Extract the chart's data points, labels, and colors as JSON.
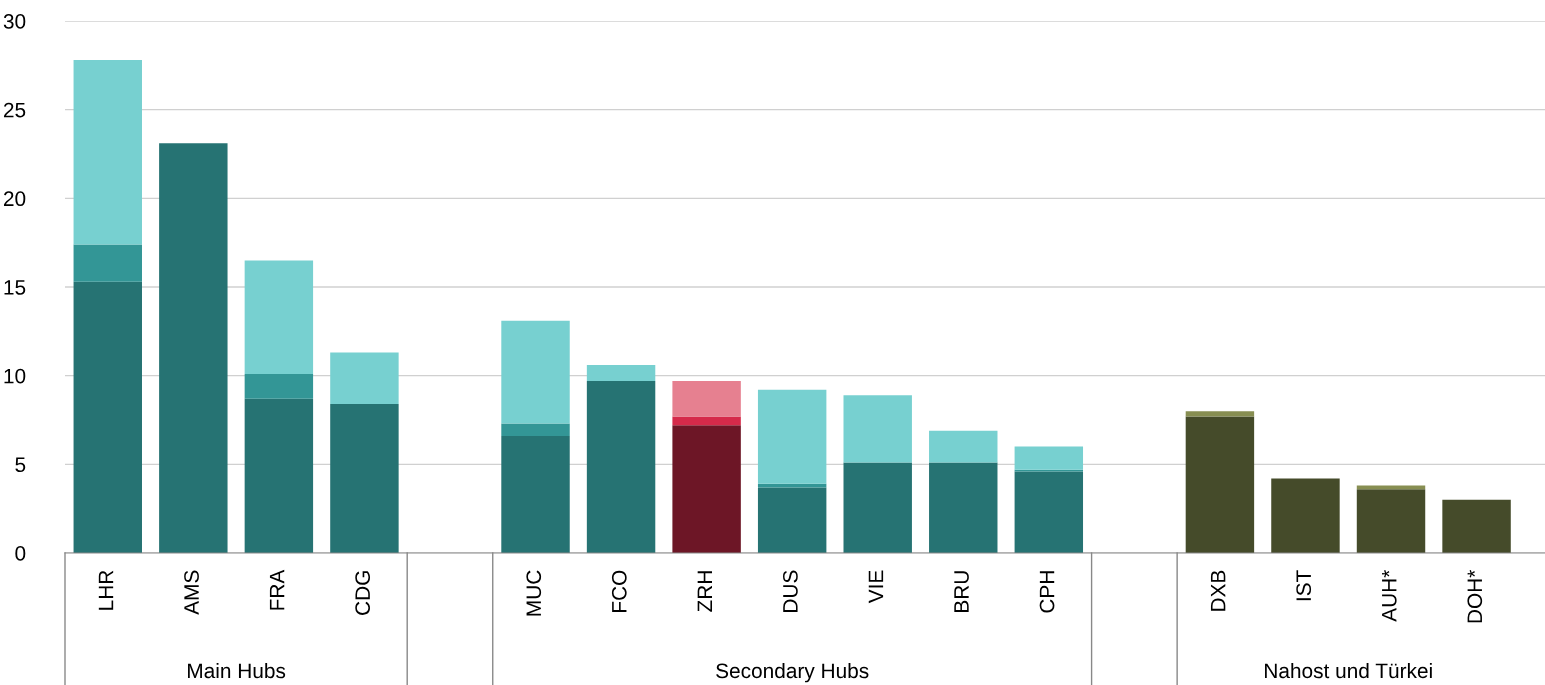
{
  "chart_data": {
    "type": "bar",
    "stacked": true,
    "categories": [
      "LHR",
      "AMS",
      "FRA",
      "CDG",
      null,
      "MUC",
      "FCO",
      "ZRH",
      "DUS",
      "VIE",
      "BRU",
      "CPH",
      null,
      "DXB",
      "IST",
      "AUH*",
      "DOH*"
    ],
    "series": [
      {
        "colors": [
          "#267373",
          "#267373",
          "#267373",
          "#267373",
          "#267373",
          "#267373",
          "#267373",
          "#6d1626",
          "#267373",
          "#267373",
          "#267373",
          "#267373",
          "#267373",
          "#454b2a",
          "#454b2a",
          "#454b2a",
          "#454b2a"
        ],
        "values": [
          15.3,
          23.1,
          8.7,
          8.4,
          null,
          6.6,
          9.7,
          7.2,
          3.7,
          5.1,
          5.1,
          4.6,
          null,
          7.7,
          4.2,
          3.6,
          3.0
        ]
      },
      {
        "colors": [
          "#339696",
          "#339696",
          "#339696",
          "#339696",
          "#339696",
          "#339696",
          "#339696",
          "#d52a4a",
          "#339696",
          "#339696",
          "#339696",
          "#339696",
          "#339696",
          "#878e52",
          "#878e52",
          "#878e52",
          "#878e52"
        ],
        "values": [
          2.1,
          null,
          1.4,
          null,
          null,
          0.7,
          null,
          0.5,
          0.2,
          null,
          null,
          0.1,
          null,
          0.3,
          null,
          0.2,
          null
        ]
      },
      {
        "colors": [
          "#77d0d0",
          "#77d0d0",
          "#77d0d0",
          "#77d0d0",
          "#77d0d0",
          "#77d0d0",
          "#77d0d0",
          "#e68090",
          "#77d0d0",
          "#77d0d0",
          "#77d0d0",
          "#77d0d0",
          "#77d0d0",
          "#878e52",
          "#878e52",
          "#878e52",
          "#878e52"
        ],
        "values": [
          10.4,
          null,
          6.4,
          2.9,
          null,
          5.8,
          0.9,
          2.0,
          5.3,
          3.8,
          1.8,
          1.3,
          null,
          null,
          null,
          null,
          null
        ]
      }
    ],
    "ylim": [
      0,
      30
    ],
    "yticks": [
      0,
      5,
      10,
      15,
      20,
      25,
      30
    ],
    "grid": "y",
    "legend": false,
    "annotations": [
      "Main Hubs",
      "Secondary Hubs",
      "Nahost und Türkei"
    ]
  }
}
